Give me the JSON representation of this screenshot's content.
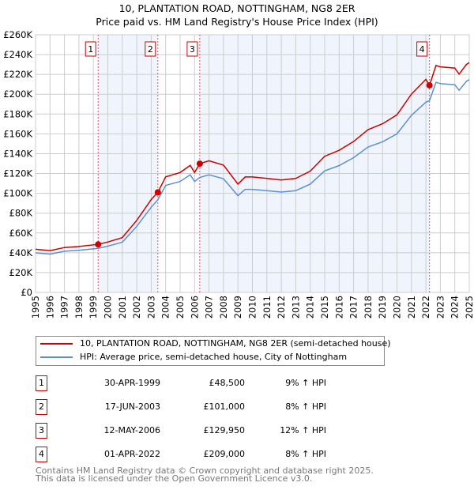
{
  "chart_data": {
    "type": "line",
    "title": "10, PLANTATION ROAD, NOTTINGHAM, NG8 2ER",
    "subtitle": "Price paid vs. HM Land Registry's House Price Index (HPI)",
    "xlim": [
      1995,
      2025
    ],
    "ylim": [
      0,
      260000
    ],
    "y_ticks": [
      0,
      20000,
      40000,
      60000,
      80000,
      100000,
      120000,
      140000,
      160000,
      180000,
      200000,
      220000,
      240000,
      260000
    ],
    "y_tick_labels": [
      "£0",
      "£20K",
      "£40K",
      "£60K",
      "£80K",
      "£100K",
      "£120K",
      "£140K",
      "£160K",
      "£180K",
      "£200K",
      "£220K",
      "£240K",
      "£260K"
    ],
    "x_tick_labels": [
      "1995",
      "1996",
      "1997",
      "1998",
      "1999",
      "2000",
      "2001",
      "2002",
      "2003",
      "2004",
      "2005",
      "2006",
      "2007",
      "2008",
      "2009",
      "2010",
      "2011",
      "2012",
      "2013",
      "2014",
      "2015",
      "2016",
      "2017",
      "2018",
      "2019",
      "2020",
      "2021",
      "2022",
      "2023",
      "2024",
      "2025"
    ],
    "grid": true,
    "x": [
      1995,
      1996,
      1997,
      1998,
      1999,
      1999.33,
      2000,
      2001,
      2002,
      2003,
      2003.46,
      2004,
      2005,
      2005.7,
      2006,
      2006.36,
      2007,
      2008,
      2009,
      2009.5,
      2010,
      2011,
      2012,
      2013,
      2014,
      2015,
      2016,
      2017,
      2018,
      2019,
      2020,
      2021,
      2022,
      2022.25,
      2022.7,
      2023,
      2024,
      2024.3,
      2024.8,
      2025
    ],
    "series": [
      {
        "name": "10, PLANTATION ROAD, NOTTINGHAM, NG8 2ER (semi-detached house)",
        "color": "#cc0000",
        "values": [
          43600,
          42200,
          45300,
          46400,
          48000,
          48500,
          50900,
          55300,
          72700,
          93700,
          101000,
          116600,
          121000,
          128200,
          121000,
          129950,
          132900,
          128500,
          109300,
          116500,
          116500,
          115000,
          113500,
          115000,
          122400,
          137400,
          143400,
          152300,
          164300,
          170200,
          179200,
          200100,
          215000,
          209000,
          229000,
          227600,
          226400,
          220300,
          230000,
          231900
        ]
      },
      {
        "name": "HPI: Average price, semi-detached house, City of Nottingham",
        "color": "#5b8fd4",
        "values": [
          40000,
          38700,
          41600,
          42600,
          44000,
          44500,
          46700,
          50700,
          66700,
          86000,
          93500,
          108000,
          112000,
          118700,
          112000,
          116000,
          118700,
          114700,
          97600,
          104000,
          104000,
          102700,
          101300,
          102700,
          109300,
          122700,
          128000,
          136000,
          146700,
          152000,
          160000,
          178700,
          192000,
          193500,
          212000,
          210700,
          209600,
          204000,
          213000,
          214700
        ]
      }
    ],
    "sales": [
      {
        "id": "1",
        "x": 1999.33,
        "date": "30-APR-1999",
        "price": 48500,
        "price_label": "£48,500",
        "hpi": "9% ↑ HPI"
      },
      {
        "id": "2",
        "x": 2003.46,
        "date": "17-JUN-2003",
        "price": 101000,
        "price_label": "£101,000",
        "hpi": "8% ↑ HPI"
      },
      {
        "id": "3",
        "x": 2006.36,
        "date": "12-MAY-2006",
        "price": 129950,
        "price_label": "£129,950",
        "hpi": "12% ↑ HPI"
      },
      {
        "id": "4",
        "x": 2022.25,
        "date": "01-APR-2022",
        "price": 209000,
        "price_label": "£209,000",
        "hpi": "8% ↑ HPI"
      }
    ],
    "shaded_ranges": [
      [
        1999.33,
        2003.46
      ],
      [
        2006.36,
        2022.25
      ]
    ],
    "legend_placement": "below"
  },
  "footer": {
    "line1": "Contains HM Land Registry data © Crown copyright and database right 2025.",
    "line2": "This data is licensed under the Open Government Licence v3.0."
  }
}
